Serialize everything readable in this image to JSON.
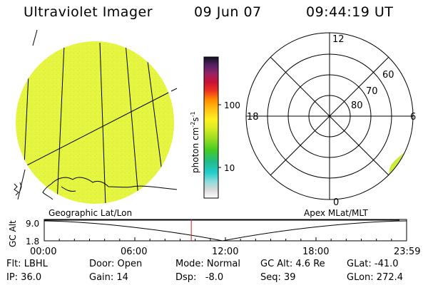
{
  "header": {
    "instrument": "Ultraviolet Imager",
    "date": "09 Jun 07",
    "time": "09:44:19 UT"
  },
  "colorbar": {
    "label": "photon cm",
    "label_exp1": "-2",
    "label_s": "s",
    "label_exp2": "-1",
    "ticks": [
      "100",
      "10"
    ]
  },
  "polar_plot": {
    "mlt_labels": {
      "top": "12",
      "left": "18",
      "right": "6",
      "bottom": "0"
    },
    "lat_labels": [
      "60",
      "70",
      "80"
    ]
  },
  "timeline": {
    "y_label": "GC Alt",
    "y_ticks": [
      "9.0",
      "1.8"
    ],
    "left_caption": "Geographic Lat/Lon",
    "right_caption": "Apex MLat/MLT",
    "x_ticks": [
      "00:00",
      "06:00",
      "12:00",
      "18:00",
      "23:59"
    ],
    "current_time_hours": 9.74
  },
  "info": {
    "filter": "Flt: LBHL",
    "ip": "IP: 36.0",
    "door": "Door: Open",
    "gain": "Gain: 14",
    "mode": "Mode: Normal",
    "dsp": "Dsp:   -8.0",
    "gc_alt": "GC Alt: 4.6 Re",
    "seq": "Seq: 39",
    "glat": "GLat: -41.0",
    "glon": "GLon: 272.4"
  },
  "colors": {
    "image_fill": "#e6f53f",
    "current_time_marker": "#cc2222"
  }
}
